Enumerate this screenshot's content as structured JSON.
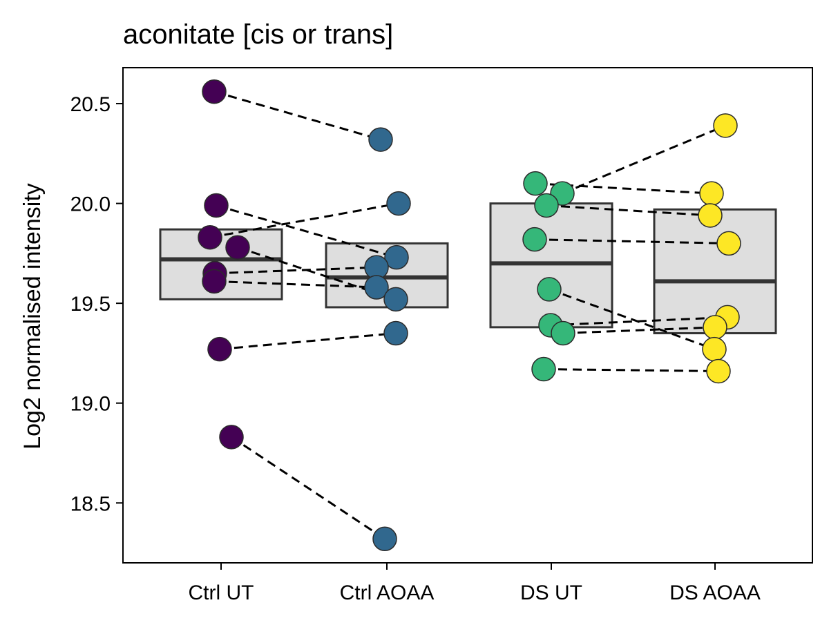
{
  "chart_data": {
    "type": "box",
    "title": "aconitate [cis or trans]",
    "ylabel": "Log2 normalised intensity",
    "xlabel": "",
    "ylim": [
      18.2,
      20.68
    ],
    "yticks": [
      18.5,
      19.0,
      19.5,
      20.0,
      20.5
    ],
    "ytick_labels": [
      "18.5",
      "19.0",
      "19.5",
      "20.0",
      "20.5"
    ],
    "categories": [
      "Ctrl UT",
      "Ctrl AOAA",
      "DS UT",
      "DS AOAA"
    ],
    "grid": false,
    "legend": "none",
    "box_fill": "#dedede",
    "box_stroke": "#333333",
    "boxes": [
      {
        "group": "Ctrl UT",
        "q1": 19.52,
        "median": 19.72,
        "q3": 19.87
      },
      {
        "group": "Ctrl AOAA",
        "q1": 19.48,
        "median": 19.63,
        "q3": 19.8
      },
      {
        "group": "DS UT",
        "q1": 19.38,
        "median": 19.7,
        "q3": 20.0
      },
      {
        "group": "DS AOAA",
        "q1": 19.35,
        "median": 19.61,
        "q3": 19.97
      }
    ],
    "series": [
      {
        "group": "Ctrl UT",
        "color": "#440154",
        "values": [
          20.56,
          19.99,
          19.83,
          19.78,
          19.65,
          19.61,
          19.27,
          18.83
        ]
      },
      {
        "group": "Ctrl AOAA",
        "color": "#31688e",
        "values": [
          20.32,
          20.0,
          19.73,
          19.68,
          19.58,
          19.52,
          19.35,
          18.32
        ]
      },
      {
        "group": "DS UT",
        "color": "#35b779",
        "values": [
          20.1,
          20.05,
          19.99,
          19.82,
          19.57,
          19.39,
          19.35,
          19.17
        ]
      },
      {
        "group": "DS AOAA",
        "color": "#fde725",
        "values": [
          20.39,
          20.05,
          19.94,
          19.8,
          19.43,
          19.38,
          19.27,
          19.16
        ]
      }
    ],
    "pairs": [
      {
        "from": "Ctrl UT",
        "to": "Ctrl AOAA",
        "links": [
          [
            20.56,
            20.32
          ],
          [
            18.83,
            18.32
          ],
          [
            19.27,
            19.35
          ],
          [
            19.99,
            19.73
          ],
          [
            19.83,
            20.0
          ],
          [
            19.65,
            19.68
          ],
          [
            19.61,
            19.58
          ],
          [
            19.78,
            19.52
          ]
        ]
      },
      {
        "from": "DS UT",
        "to": "DS AOAA",
        "links": [
          [
            20.05,
            20.39
          ],
          [
            20.1,
            20.05
          ],
          [
            19.99,
            19.94
          ],
          [
            19.82,
            19.8
          ],
          [
            19.57,
            19.27
          ],
          [
            19.39,
            19.43
          ],
          [
            19.35,
            19.38
          ],
          [
            19.17,
            19.16
          ]
        ]
      }
    ]
  }
}
